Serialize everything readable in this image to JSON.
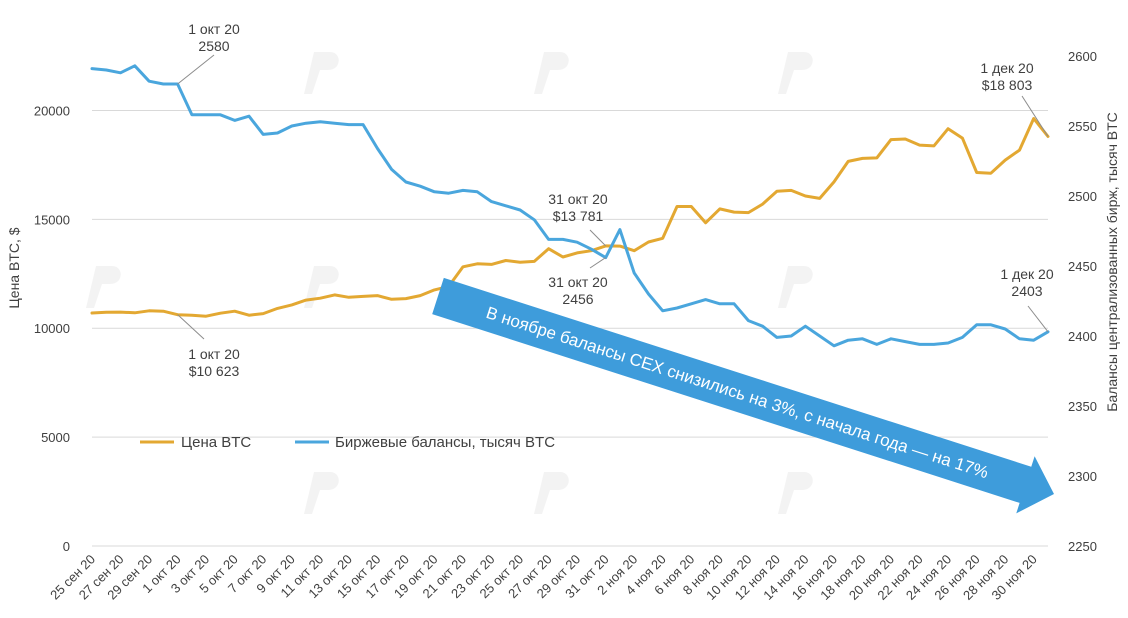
{
  "chart_data": {
    "type": "line",
    "xlabel": "",
    "ylabel_left": "Цена BTC, $",
    "ylabel_right": "Балансы централизованных бирж, тысяч BTC",
    "ylim_left": [
      0,
      22500
    ],
    "ylim_right": [
      2250,
      2600
    ],
    "yticks_left": [
      "0",
      "5000",
      "10000",
      "15000",
      "20000"
    ],
    "yticks_right": [
      "2250",
      "2300",
      "2350",
      "2400",
      "2450",
      "2500",
      "2550",
      "2600"
    ],
    "x": [
      "25 сен 20",
      "26 сен 20",
      "27 сен 20",
      "28 сен 20",
      "29 сен 20",
      "30 сен 20",
      "1 окт 20",
      "2 окт 20",
      "3 окт 20",
      "4 окт 20",
      "5 окт 20",
      "6 окт 20",
      "7 окт 20",
      "8 окт 20",
      "9 окт 20",
      "10 окт 20",
      "11 окт 20",
      "12 окт 20",
      "13 окт 20",
      "14 окт 20",
      "15 окт 20",
      "16 окт 20",
      "17 окт 20",
      "18 окт 20",
      "19 окт 20",
      "20 окт 20",
      "21 окт 20",
      "22 окт 20",
      "23 окт 20",
      "24 окт 20",
      "25 окт 20",
      "26 окт 20",
      "27 окт 20",
      "28 окт 20",
      "29 окт 20",
      "30 окт 20",
      "31 окт 20",
      "1 ноя 20",
      "2 ноя 20",
      "3 ноя 20",
      "4 ноя 20",
      "5 ноя 20",
      "6 ноя 20",
      "7 ноя 20",
      "8 ноя 20",
      "9 ноя 20",
      "10 ноя 20",
      "11 ноя 20",
      "12 ноя 20",
      "13 ноя 20",
      "14 ноя 20",
      "15 ноя 20",
      "16 ноя 20",
      "17 ноя 20",
      "18 ноя 20",
      "19 ноя 20",
      "20 ноя 20",
      "21 ноя 20",
      "22 ноя 20",
      "23 ноя 20",
      "24 ноя 20",
      "25 ноя 20",
      "26 ноя 20",
      "27 ноя 20",
      "28 ноя 20",
      "29 ноя 20",
      "30 ноя 20",
      "1 дек 20"
    ],
    "x_tick_labels": [
      "25 сен 20",
      "27 сен 20",
      "29 сен 20",
      "1 окт 20",
      "3 окт 20",
      "5 окт 20",
      "7 окт 20",
      "9 окт 20",
      "11 окт 20",
      "13 окт 20",
      "15 окт 20",
      "17 окт 20",
      "19 окт 20",
      "21 окт 20",
      "23 окт 20",
      "25 окт 20",
      "27 окт 20",
      "29 окт 20",
      "31 окт 20",
      "2 ноя 20",
      "4 ноя 20",
      "6 ноя 20",
      "8 ноя 20",
      "10 ноя 20",
      "12 ноя 20",
      "14 ноя 20",
      "16 ноя 20",
      "18 ноя 20",
      "20 ноя 20",
      "22 ноя 20",
      "24 ноя 20",
      "26 ноя 20",
      "28 ноя 20",
      "30 ноя 20"
    ],
    "series": [
      {
        "name": "Цена BTC",
        "axis": "left",
        "color": "#E3A832",
        "values": [
          10700,
          10730,
          10740,
          10710,
          10800,
          10780,
          10623,
          10600,
          10550,
          10690,
          10780,
          10600,
          10670,
          10910,
          11070,
          11290,
          11380,
          11530,
          11420,
          11460,
          11500,
          11330,
          11360,
          11500,
          11760,
          11920,
          12820,
          12960,
          12930,
          13110,
          13030,
          13070,
          13650,
          13270,
          13460,
          13560,
          13781,
          13770,
          13560,
          13960,
          14130,
          15590,
          15590,
          14840,
          15480,
          15330,
          15310,
          15700,
          16290,
          16330,
          16070,
          15960,
          16720,
          17660,
          17800,
          17820,
          18660,
          18690,
          18410,
          18370,
          19160,
          18730,
          17150,
          17120,
          17720,
          18180,
          19630,
          18803
        ]
      },
      {
        "name": "Биржевые балансы, тысяч BTC",
        "axis": "right",
        "color": "#4AA6DD",
        "values": [
          2591,
          2590,
          2588,
          2593,
          2582,
          2580,
          2580,
          2558,
          2558,
          2558,
          2554,
          2557,
          2544,
          2545,
          2550,
          2552,
          2553,
          2552,
          2551,
          2551,
          2534,
          2519,
          2510,
          2507,
          2503,
          2502,
          2504,
          2503,
          2496,
          2493,
          2490,
          2483,
          2469,
          2469,
          2467,
          2462,
          2456,
          2476,
          2445,
          2430,
          2418,
          2420,
          2423,
          2426,
          2423,
          2423,
          2411,
          2407,
          2399,
          2400,
          2407,
          2400,
          2393,
          2397,
          2398,
          2394,
          2398,
          2396,
          2394,
          2394,
          2395,
          2399,
          2408,
          2408,
          2405,
          2398,
          2397,
          2403
        ]
      }
    ],
    "legend": {
      "placement": "center-left",
      "entries": [
        "Цена BTC",
        "Биржевые балансы, тысяч BTC"
      ]
    },
    "annotations": [
      {
        "line1": "1 окт 20",
        "line2": "2580",
        "series": "Биржевые балансы, тысяч BTC",
        "x": "1 окт 20"
      },
      {
        "line1": "1 окт 20",
        "line2": "$10 623",
        "series": "Цена BTC",
        "x": "1 окт 20"
      },
      {
        "line1": "31 окт 20",
        "line2": "$13 781",
        "series": "Цена BTC",
        "x": "31 окт 20"
      },
      {
        "line1": "31 окт 20",
        "line2": "2456",
        "series": "Биржевые балансы, тысяч BTC",
        "x": "31 окт 20"
      },
      {
        "line1": "1 дек 20",
        "line2": "$18 803",
        "series": "Цена BTC",
        "x": "1 дек 20"
      },
      {
        "line1": "1 дек 20",
        "line2": "2403",
        "series": "Биржевые балансы, тысяч BTC",
        "x": "1 дек 20"
      }
    ],
    "banner_text": "В ноябре балансы CEX снизились на 3%, с начала года — на 17%",
    "grid": true
  }
}
